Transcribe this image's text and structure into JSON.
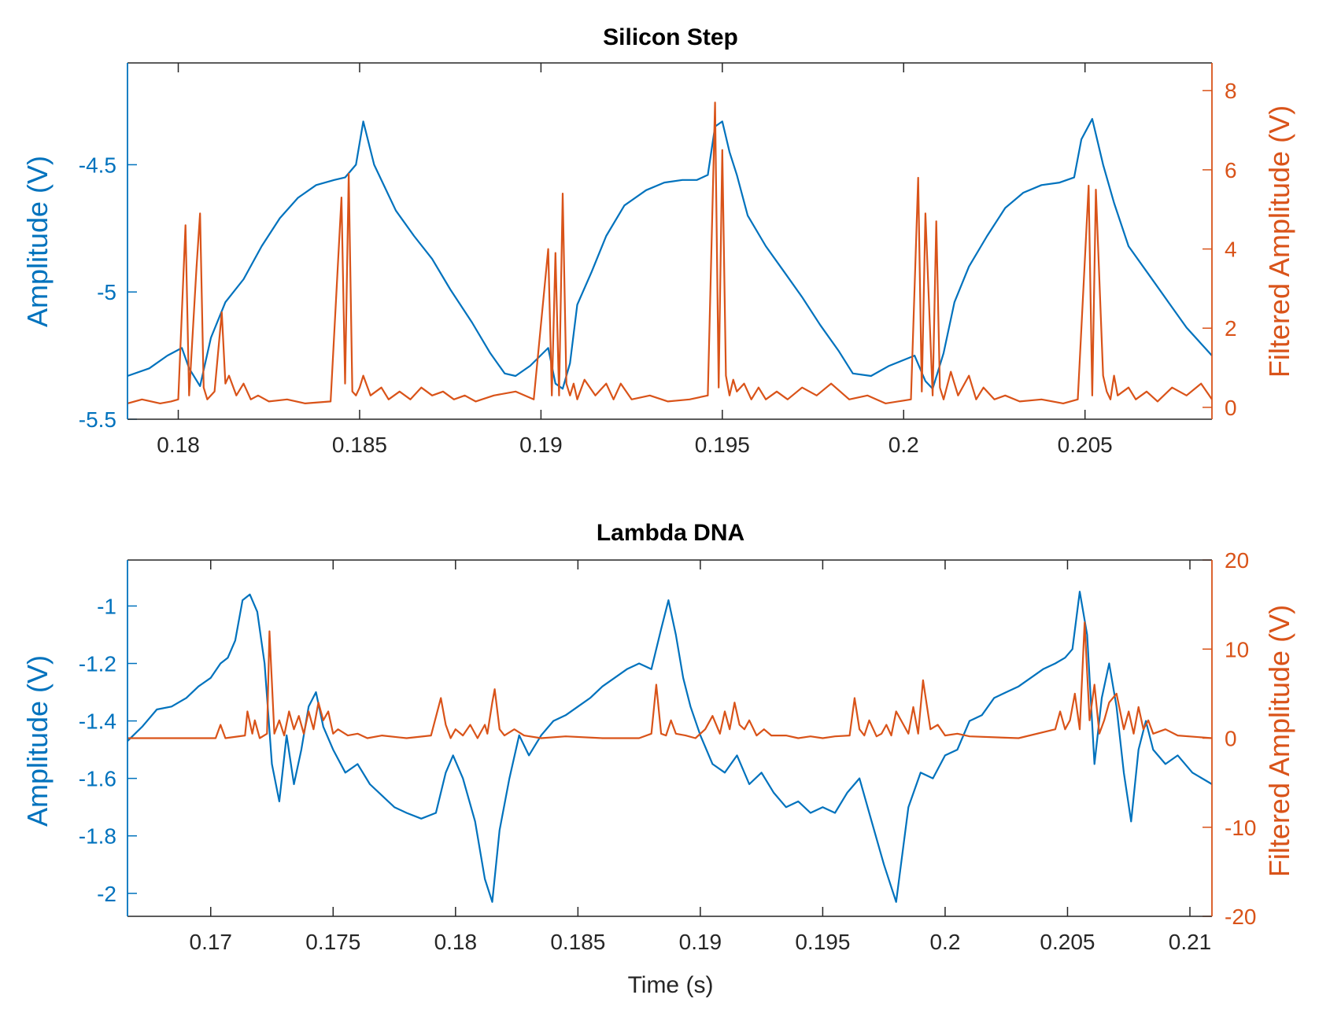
{
  "colors": {
    "left_axis": "#0072BD",
    "right_axis": "#D95319",
    "frame": "#262626",
    "text": "#262626"
  },
  "chart_data": [
    {
      "type": "line",
      "title": "Silicon Step",
      "xlabel": "",
      "ylabel": "Amplitude (V)",
      "y2label": "Filtered Amplitude (V)",
      "xlim": [
        0.1786,
        0.2085
      ],
      "ylim": [
        -5.5,
        -4.1
      ],
      "y2lim": [
        -0.3,
        8.7
      ],
      "xticks": [
        0.18,
        0.185,
        0.19,
        0.195,
        0.2,
        0.205
      ],
      "xtick_labels": [
        "0.18",
        "0.185",
        "0.19",
        "0.195",
        "0.2",
        "0.205"
      ],
      "yticks": [
        -5.5,
        -5,
        -4.5
      ],
      "ytick_labels": [
        "-5.5",
        "-5",
        "-4.5"
      ],
      "y2ticks": [
        0,
        2,
        4,
        6,
        8
      ],
      "y2tick_labels": [
        "0",
        "2",
        "4",
        "6",
        "8"
      ],
      "series": [
        {
          "name": "Amplitude",
          "axis": "left",
          "x": [
            0.1786,
            0.1792,
            0.1797,
            0.1801,
            0.1803,
            0.1806,
            0.1809,
            0.1813,
            0.1818,
            0.1823,
            0.1828,
            0.1833,
            0.1838,
            0.1843,
            0.1846,
            0.1849,
            0.1851,
            0.1854,
            0.186,
            0.1865,
            0.187,
            0.1875,
            0.1881,
            0.1886,
            0.189,
            0.1893,
            0.1897,
            0.1902,
            0.1904,
            0.1906,
            0.1908,
            0.191,
            0.1914,
            0.1918,
            0.1923,
            0.1929,
            0.1934,
            0.1939,
            0.1943,
            0.1946,
            0.1948,
            0.195,
            0.1952,
            0.1954,
            0.1957,
            0.1962,
            0.1967,
            0.1972,
            0.1977,
            0.1982,
            0.1986,
            0.1991,
            0.1996,
            0.2003,
            0.2006,
            0.2008,
            0.2011,
            0.2014,
            0.2018,
            0.2023,
            0.2028,
            0.2033,
            0.2038,
            0.2043,
            0.2047,
            0.2049,
            0.2052,
            0.2055,
            0.2058,
            0.2062,
            0.2068,
            0.2073,
            0.2078,
            0.2085
          ],
          "y": [
            -5.33,
            -5.3,
            -5.25,
            -5.22,
            -5.3,
            -5.37,
            -5.18,
            -5.04,
            -4.95,
            -4.82,
            -4.71,
            -4.63,
            -4.58,
            -4.56,
            -4.55,
            -4.5,
            -4.33,
            -4.5,
            -4.68,
            -4.78,
            -4.87,
            -4.99,
            -5.12,
            -5.24,
            -5.32,
            -5.33,
            -5.29,
            -5.22,
            -5.36,
            -5.38,
            -5.28,
            -5.05,
            -4.92,
            -4.78,
            -4.66,
            -4.6,
            -4.57,
            -4.56,
            -4.56,
            -4.54,
            -4.35,
            -4.33,
            -4.45,
            -4.54,
            -4.7,
            -4.82,
            -4.92,
            -5.02,
            -5.13,
            -5.23,
            -5.32,
            -5.33,
            -5.29,
            -5.25,
            -5.35,
            -5.38,
            -5.24,
            -5.04,
            -4.9,
            -4.78,
            -4.67,
            -4.61,
            -4.58,
            -4.57,
            -4.55,
            -4.4,
            -4.32,
            -4.5,
            -4.65,
            -4.82,
            -4.94,
            -5.04,
            -5.14,
            -5.25
          ]
        },
        {
          "name": "Filtered Amplitude",
          "axis": "right",
          "x": [
            0.1786,
            0.179,
            0.1795,
            0.1798,
            0.18,
            0.1802,
            0.1803,
            0.1805,
            0.1806,
            0.1807,
            0.1808,
            0.181,
            0.1812,
            0.1813,
            0.1814,
            0.1816,
            0.1818,
            0.182,
            0.1822,
            0.1825,
            0.183,
            0.1835,
            0.1842,
            0.1845,
            0.1846,
            0.1847,
            0.1848,
            0.1849,
            0.185,
            0.1851,
            0.1853,
            0.1856,
            0.1858,
            0.1861,
            0.1864,
            0.1867,
            0.187,
            0.1873,
            0.1876,
            0.1879,
            0.1882,
            0.1887,
            0.1893,
            0.1898,
            0.1902,
            0.1903,
            0.1904,
            0.1905,
            0.1906,
            0.1907,
            0.1908,
            0.1909,
            0.191,
            0.1912,
            0.1915,
            0.1918,
            0.192,
            0.1922,
            0.1925,
            0.193,
            0.1935,
            0.1941,
            0.1946,
            0.1948,
            0.1949,
            0.195,
            0.1951,
            0.1952,
            0.1953,
            0.1954,
            0.1956,
            0.1958,
            0.196,
            0.1962,
            0.1965,
            0.1968,
            0.1972,
            0.1976,
            0.198,
            0.1985,
            0.199,
            0.1995,
            0.2002,
            0.2004,
            0.2005,
            0.2006,
            0.2008,
            0.2009,
            0.201,
            0.2011,
            0.2013,
            0.2015,
            0.2018,
            0.202,
            0.2022,
            0.2025,
            0.2028,
            0.2032,
            0.2038,
            0.2044,
            0.2048,
            0.2051,
            0.2052,
            0.2053,
            0.2055,
            0.2056,
            0.2057,
            0.2058,
            0.2059,
            0.2062,
            0.2064,
            0.2067,
            0.207,
            0.2074,
            0.2078,
            0.2082,
            0.2085
          ],
          "y": [
            0.1,
            0.2,
            0.1,
            0.15,
            0.2,
            4.6,
            0.3,
            3.5,
            4.9,
            0.5,
            0.2,
            0.4,
            2.4,
            0.6,
            0.8,
            0.3,
            0.6,
            0.2,
            0.3,
            0.15,
            0.2,
            0.1,
            0.15,
            5.3,
            0.6,
            5.9,
            0.4,
            0.3,
            0.5,
            0.8,
            0.3,
            0.5,
            0.2,
            0.4,
            0.2,
            0.5,
            0.3,
            0.4,
            0.2,
            0.3,
            0.15,
            0.3,
            0.4,
            0.2,
            4.0,
            0.3,
            3.9,
            0.3,
            5.4,
            0.6,
            0.3,
            0.6,
            0.2,
            0.7,
            0.3,
            0.6,
            0.2,
            0.6,
            0.2,
            0.3,
            0.15,
            0.2,
            0.3,
            7.7,
            0.5,
            6.5,
            0.8,
            0.3,
            0.7,
            0.4,
            0.6,
            0.2,
            0.5,
            0.2,
            0.4,
            0.2,
            0.5,
            0.3,
            0.6,
            0.2,
            0.3,
            0.1,
            0.2,
            5.8,
            0.4,
            4.9,
            0.3,
            4.7,
            0.5,
            0.2,
            0.9,
            0.3,
            0.8,
            0.2,
            0.5,
            0.2,
            0.3,
            0.15,
            0.2,
            0.1,
            0.2,
            5.6,
            0.3,
            5.5,
            0.8,
            0.4,
            0.2,
            0.8,
            0.3,
            0.5,
            0.2,
            0.4,
            0.15,
            0.5,
            0.3,
            0.6,
            0.2
          ]
        }
      ]
    },
    {
      "type": "line",
      "title": "Lambda DNA",
      "xlabel": "Time (s)",
      "ylabel": "Amplitude (V)",
      "y2label": "Filtered Amplitude (V)",
      "xlim": [
        0.1666,
        0.2109
      ],
      "ylim": [
        -2.08,
        -0.84
      ],
      "y2lim": [
        -20,
        20
      ],
      "xticks": [
        0.17,
        0.175,
        0.18,
        0.185,
        0.19,
        0.195,
        0.2,
        0.205,
        0.21
      ],
      "xtick_labels": [
        "0.17",
        "0.175",
        "0.18",
        "0.185",
        "0.19",
        "0.195",
        "0.2",
        "0.205",
        "0.21"
      ],
      "yticks": [
        -2,
        -1.8,
        -1.6,
        -1.4,
        -1.2,
        -1
      ],
      "ytick_labels": [
        "-2",
        "-1.8",
        "-1.6",
        "-1.4",
        "-1.2",
        "-1"
      ],
      "y2ticks": [
        -20,
        -10,
        0,
        10,
        20
      ],
      "y2tick_labels": [
        "-20",
        "-10",
        "0",
        "10",
        "20"
      ],
      "series": [
        {
          "name": "Amplitude",
          "axis": "left",
          "x": [
            0.1666,
            0.1672,
            0.1678,
            0.1684,
            0.169,
            0.1695,
            0.17,
            0.1704,
            0.1707,
            0.171,
            0.1713,
            0.1716,
            0.1719,
            0.1722,
            0.1725,
            0.1728,
            0.1731,
            0.1734,
            0.1737,
            0.174,
            0.1743,
            0.1746,
            0.175,
            0.1755,
            0.176,
            0.1765,
            0.177,
            0.1775,
            0.178,
            0.1786,
            0.1792,
            0.1796,
            0.1799,
            0.1803,
            0.1808,
            0.1812,
            0.1815,
            0.1818,
            0.1822,
            0.1826,
            0.183,
            0.1835,
            0.184,
            0.1845,
            0.185,
            0.1855,
            0.186,
            0.1865,
            0.187,
            0.1875,
            0.188,
            0.1884,
            0.1887,
            0.189,
            0.1893,
            0.1896,
            0.19,
            0.1905,
            0.191,
            0.1915,
            0.192,
            0.1925,
            0.193,
            0.1935,
            0.194,
            0.1945,
            0.195,
            0.1955,
            0.196,
            0.1965,
            0.197,
            0.1975,
            0.198,
            0.1985,
            0.199,
            0.1995,
            0.2,
            0.2005,
            0.201,
            0.2015,
            0.202,
            0.2025,
            0.203,
            0.2035,
            0.204,
            0.2045,
            0.2049,
            0.2052,
            0.2055,
            0.2058,
            0.2061,
            0.2064,
            0.2067,
            0.207,
            0.2073,
            0.2076,
            0.2079,
            0.2082,
            0.2085,
            0.209,
            0.2095,
            0.2101,
            0.2109
          ],
          "y": [
            -1.47,
            -1.42,
            -1.36,
            -1.35,
            -1.32,
            -1.28,
            -1.25,
            -1.2,
            -1.18,
            -1.12,
            -0.98,
            -0.96,
            -1.02,
            -1.2,
            -1.55,
            -1.68,
            -1.45,
            -1.62,
            -1.5,
            -1.35,
            -1.3,
            -1.42,
            -1.5,
            -1.58,
            -1.55,
            -1.62,
            -1.66,
            -1.7,
            -1.72,
            -1.74,
            -1.72,
            -1.58,
            -1.52,
            -1.6,
            -1.75,
            -1.95,
            -2.03,
            -1.78,
            -1.6,
            -1.45,
            -1.52,
            -1.45,
            -1.4,
            -1.38,
            -1.35,
            -1.32,
            -1.28,
            -1.25,
            -1.22,
            -1.2,
            -1.22,
            -1.08,
            -0.98,
            -1.1,
            -1.25,
            -1.35,
            -1.45,
            -1.55,
            -1.58,
            -1.52,
            -1.62,
            -1.58,
            -1.65,
            -1.7,
            -1.68,
            -1.72,
            -1.7,
            -1.72,
            -1.65,
            -1.6,
            -1.75,
            -1.9,
            -2.03,
            -1.7,
            -1.58,
            -1.6,
            -1.52,
            -1.5,
            -1.4,
            -1.38,
            -1.32,
            -1.3,
            -1.28,
            -1.25,
            -1.22,
            -1.2,
            -1.18,
            -1.15,
            -0.95,
            -1.1,
            -1.55,
            -1.32,
            -1.2,
            -1.35,
            -1.58,
            -1.75,
            -1.5,
            -1.4,
            -1.5,
            -1.55,
            -1.52,
            -1.58,
            -1.62
          ]
        },
        {
          "name": "Filtered Amplitude",
          "axis": "right",
          "x": [
            0.1666,
            0.1682,
            0.1702,
            0.1704,
            0.1706,
            0.1714,
            0.1715,
            0.1717,
            0.1718,
            0.172,
            0.1723,
            0.1724,
            0.1726,
            0.1728,
            0.173,
            0.1732,
            0.1734,
            0.1736,
            0.1738,
            0.174,
            0.1742,
            0.1744,
            0.1746,
            0.1748,
            0.175,
            0.1752,
            0.1756,
            0.176,
            0.1764,
            0.177,
            0.178,
            0.179,
            0.1794,
            0.1796,
            0.1798,
            0.18,
            0.1803,
            0.1806,
            0.1809,
            0.1812,
            0.1813,
            0.1815,
            0.1816,
            0.1818,
            0.182,
            0.1824,
            0.1828,
            0.1835,
            0.1845,
            0.186,
            0.1875,
            0.188,
            0.1882,
            0.1884,
            0.1886,
            0.1888,
            0.189,
            0.1894,
            0.1898,
            0.1902,
            0.1905,
            0.1908,
            0.191,
            0.1912,
            0.1914,
            0.1916,
            0.1918,
            0.192,
            0.1923,
            0.1926,
            0.1929,
            0.1935,
            0.194,
            0.1945,
            0.195,
            0.1955,
            0.1961,
            0.1963,
            0.1965,
            0.1967,
            0.1969,
            0.1972,
            0.1974,
            0.1976,
            0.1978,
            0.198,
            0.1983,
            0.1985,
            0.1987,
            0.1989,
            0.1991,
            0.1994,
            0.1997,
            0.2,
            0.2005,
            0.201,
            0.203,
            0.2045,
            0.2047,
            0.2049,
            0.2051,
            0.2053,
            0.2055,
            0.2057,
            0.2059,
            0.2061,
            0.2063,
            0.2065,
            0.2067,
            0.207,
            0.2073,
            0.2075,
            0.2077,
            0.2079,
            0.2081,
            0.2083,
            0.2085,
            0.209,
            0.2095,
            0.2109
          ],
          "y": [
            0,
            0,
            0,
            1.5,
            0,
            0.3,
            3,
            0.5,
            2,
            0,
            0.5,
            12,
            0.5,
            2,
            0.3,
            3,
            1,
            2.5,
            0.5,
            3,
            1,
            4,
            2,
            3,
            0.5,
            1,
            0.3,
            0.5,
            0,
            0.3,
            0,
            0.3,
            4.5,
            1.5,
            0,
            1,
            0.3,
            1.5,
            0,
            1.5,
            0.5,
            4,
            5.5,
            1,
            0.3,
            1,
            0.3,
            0,
            0.2,
            0,
            0,
            0.5,
            6,
            0.5,
            0.3,
            2,
            0.5,
            0.3,
            0,
            1,
            2.5,
            0.5,
            3,
            1,
            4,
            1.5,
            1,
            2,
            0.3,
            1,
            0.3,
            0.3,
            0,
            0.2,
            0,
            0.2,
            0.3,
            4.5,
            1,
            0.3,
            2,
            0.2,
            0.5,
            1.5,
            0.3,
            3,
            1.5,
            0.5,
            3.5,
            0.5,
            6.5,
            1,
            1.5,
            0.3,
            0.5,
            0.2,
            0,
            1,
            3,
            1,
            2,
            5,
            1,
            13,
            2,
            6,
            0.5,
            2,
            4,
            5,
            1,
            3,
            0.5,
            3.5,
            1,
            2,
            0.5,
            1,
            0.3,
            0
          ]
        }
      ]
    }
  ]
}
